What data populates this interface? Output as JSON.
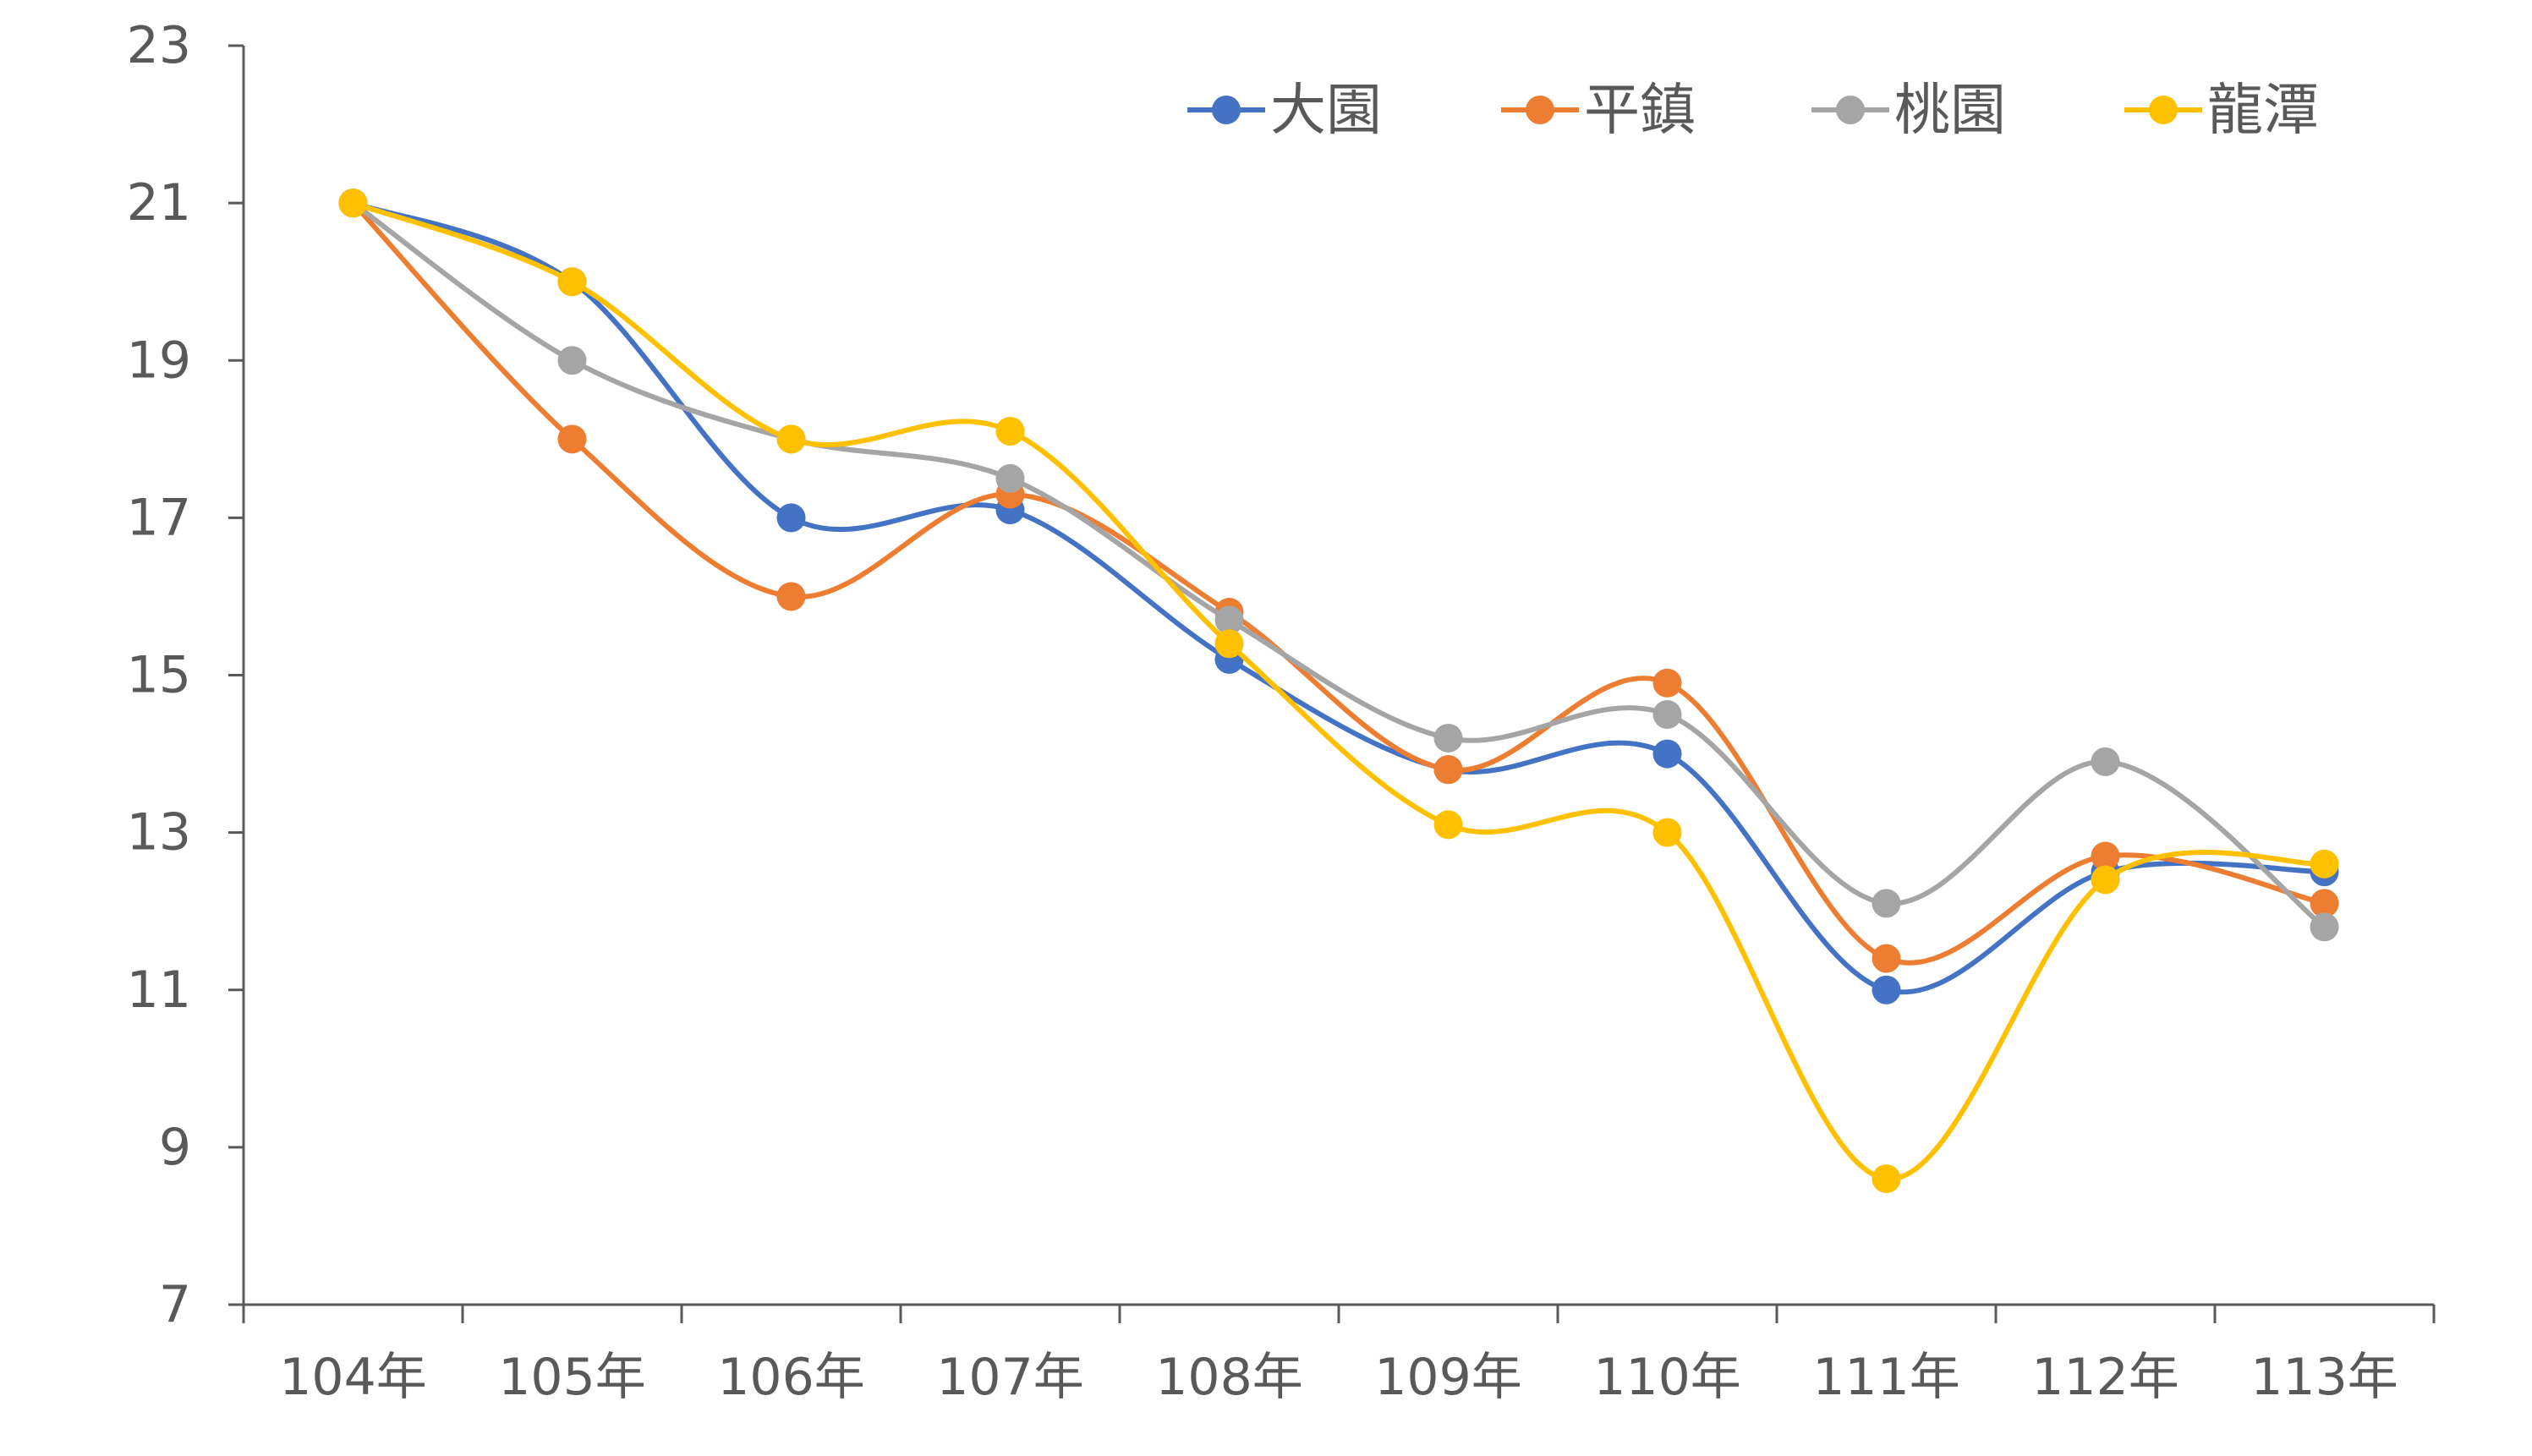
{
  "chart_data": {
    "type": "line",
    "smooth": true,
    "title": "",
    "xlabel": "",
    "ylabel": "",
    "categories": [
      "104年",
      "105年",
      "106年",
      "107年",
      "108年",
      "109年",
      "110年",
      "111年",
      "112年",
      "113年"
    ],
    "ylim": [
      7,
      23
    ],
    "yticks": [
      7,
      9,
      11,
      13,
      15,
      17,
      19,
      21,
      23
    ],
    "grid": false,
    "legend_position": "top-right",
    "series": [
      {
        "name": "大園",
        "color": "#4472C4",
        "values": [
          21,
          20,
          17,
          17.1,
          15.2,
          13.8,
          14,
          11,
          12.5,
          12.5
        ]
      },
      {
        "name": "平鎮",
        "color": "#ED7D31",
        "values": [
          21,
          18,
          16,
          17.3,
          15.8,
          13.8,
          14.9,
          11.4,
          12.7,
          12.1
        ]
      },
      {
        "name": "桃園",
        "color": "#A5A5A5",
        "values": [
          21,
          19,
          18,
          17.5,
          15.7,
          14.2,
          14.5,
          12.1,
          13.9,
          11.8
        ]
      },
      {
        "name": "龍潭",
        "color": "#FFC000",
        "values": [
          21,
          20,
          18,
          18.1,
          15.4,
          13.1,
          13,
          8.6,
          12.4,
          12.6
        ]
      }
    ]
  }
}
